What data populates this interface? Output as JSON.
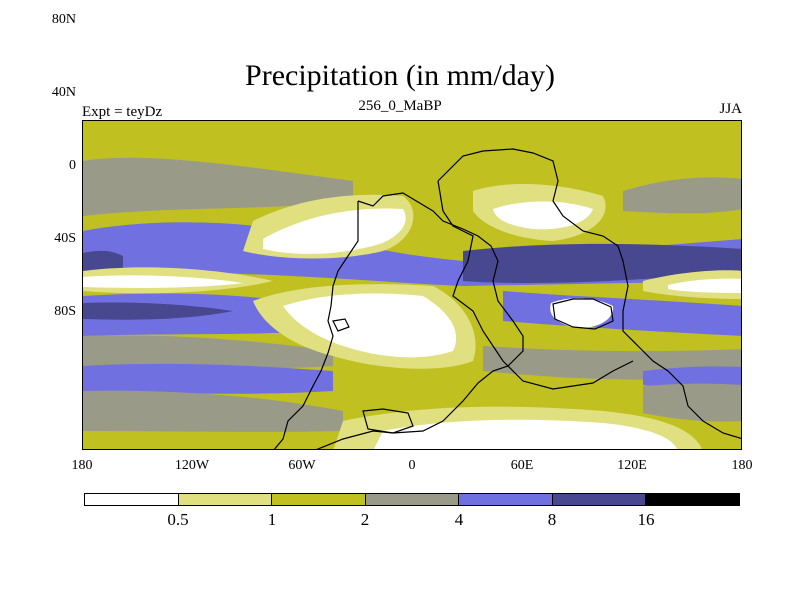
{
  "title": "Precipitation (in mm/day)",
  "subtitle_left": "Expt = teyDz",
  "subtitle_center": "256_0_MaBP",
  "subtitle_right": "JJA",
  "y_ticks": [
    "80N",
    "40N",
    "0",
    "40S",
    "80S"
  ],
  "x_ticks": [
    "180",
    "120W",
    "60W",
    "0",
    "60E",
    "120E",
    "180"
  ],
  "colorbar": {
    "colors": [
      "#ffffff",
      "#e0e080",
      "#c0c020",
      "#9a9a88",
      "#7070e0",
      "#484890",
      "#000000"
    ],
    "labels": [
      "0.5",
      "1",
      "2",
      "4",
      "8",
      "16"
    ]
  }
}
